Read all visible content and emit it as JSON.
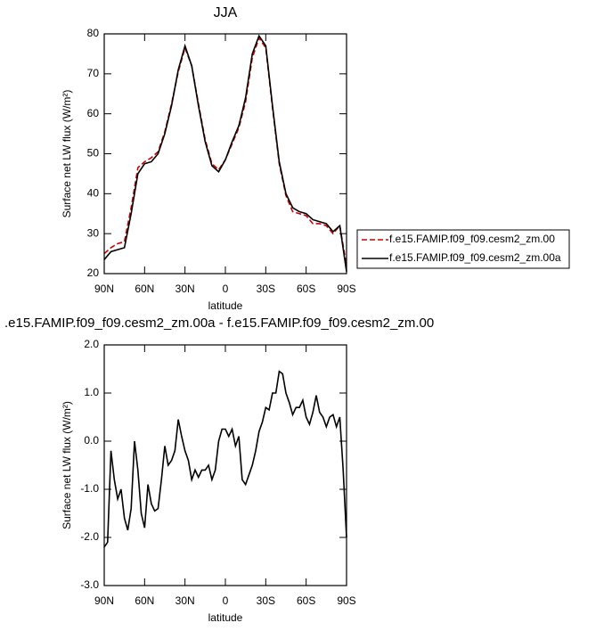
{
  "chart_data": [
    {
      "type": "line",
      "title": "JJA",
      "xlabel": "latitude",
      "ylabel": "Surface net LW flux (W/m²)",
      "x": [
        90,
        85,
        80,
        75,
        70,
        65,
        60,
        55,
        50,
        45,
        40,
        35,
        30,
        25,
        20,
        15,
        10,
        5,
        0,
        -5,
        -10,
        -15,
        -20,
        -25,
        -30,
        -35,
        -40,
        -45,
        -50,
        -55,
        -60,
        -65,
        -70,
        -75,
        -80,
        -85,
        -90
      ],
      "series": [
        {
          "name": "f.e15.FAMIP.f09_f09.cesm2_zm.00",
          "color": "#cc0000",
          "style": "dashed",
          "values": [
            25,
            26.5,
            27.5,
            28,
            36.5,
            46.5,
            48,
            49,
            50.5,
            55.5,
            62.5,
            70.5,
            76.5,
            72,
            62.5,
            53.5,
            47.5,
            46,
            48.5,
            52.5,
            56.5,
            63,
            74,
            79,
            76.5,
            61.5,
            47.5,
            39.5,
            35.5,
            35,
            34.5,
            32.5,
            32.5,
            32,
            30,
            32,
            22
          ]
        },
        {
          "name": "f.e15.FAMIP.f09_f09.cesm2_zm.00a",
          "color": "#000000",
          "style": "solid",
          "values": [
            23.5,
            25.5,
            26,
            26.5,
            35,
            45,
            47.5,
            48,
            50,
            55,
            62,
            71,
            77,
            72,
            62,
            53,
            47,
            45.5,
            48.5,
            53,
            57,
            64,
            75,
            79.5,
            77,
            62,
            48,
            40,
            36.5,
            35.5,
            35,
            33.5,
            33,
            32.5,
            30.5,
            32,
            20.5
          ]
        }
      ],
      "xlim": [
        90,
        -90
      ],
      "xticks": [
        {
          "value": 90,
          "label": "90N"
        },
        {
          "value": 60,
          "label": "60N"
        },
        {
          "value": 30,
          "label": "30N"
        },
        0,
        {
          "value": -30,
          "label": "30S"
        },
        {
          "value": -60,
          "label": "60S"
        },
        {
          "value": -90,
          "label": "90S"
        }
      ],
      "ylim": [
        20,
        80
      ],
      "yticks": [
        20,
        30,
        40,
        50,
        60,
        70,
        80
      ],
      "legend": "right"
    },
    {
      "type": "line",
      "title": ".e15.FAMIP.f09_f09.cesm2_zm.00a - f.e15.FAMIP.f09_f09.cesm2_zm.00",
      "xlabel": "latitude",
      "ylabel": "Surface net LW flux (W/m²)",
      "x": [
        90,
        87.5,
        85,
        82.5,
        80,
        77.5,
        75,
        72.5,
        70,
        67.5,
        65,
        62.5,
        60,
        57.5,
        55,
        52.5,
        50,
        47.5,
        45,
        42.5,
        40,
        37.5,
        35,
        32.5,
        30,
        27.5,
        25,
        22.5,
        20,
        17.5,
        15,
        12.5,
        10,
        7.5,
        5,
        2.5,
        0,
        -2.5,
        -5,
        -7.5,
        -10,
        -12.5,
        -15,
        -17.5,
        -20,
        -22.5,
        -25,
        -27.5,
        -30,
        -32.5,
        -35,
        -37.5,
        -40,
        -42.5,
        -45,
        -47.5,
        -50,
        -52.5,
        -55,
        -57.5,
        -60,
        -62.5,
        -65,
        -67.5,
        -70,
        -72.5,
        -75,
        -77.5,
        -80,
        -82.5,
        -85,
        -87.5,
        -90
      ],
      "series": [
        {
          "color": "#000000",
          "style": "solid",
          "values": [
            -2.2,
            -2.1,
            -0.2,
            -0.8,
            -1.2,
            -1.0,
            -1.6,
            -1.85,
            -1.4,
            0.0,
            -0.6,
            -1.5,
            -1.8,
            -0.9,
            -1.3,
            -1.45,
            -1.4,
            -0.8,
            -0.1,
            -0.5,
            -0.4,
            -0.2,
            0.45,
            0.1,
            -0.2,
            -0.4,
            -0.8,
            -0.6,
            -0.75,
            -0.6,
            -0.6,
            -0.5,
            -0.8,
            -0.6,
            0.0,
            0.25,
            0.25,
            0.1,
            0.25,
            -0.1,
            0.1,
            -0.8,
            -0.9,
            -0.7,
            -0.5,
            -0.2,
            0.2,
            0.4,
            0.7,
            0.65,
            1.0,
            1.0,
            1.45,
            1.4,
            1.0,
            0.8,
            0.55,
            0.7,
            0.7,
            0.85,
            0.5,
            0.35,
            0.6,
            0.95,
            0.6,
            0.5,
            0.3,
            0.5,
            0.55,
            0.3,
            0.5,
            -0.6,
            -2.0
          ]
        }
      ],
      "xlim": [
        90,
        -90
      ],
      "xticks": [
        {
          "value": 90,
          "label": "90N"
        },
        {
          "value": 60,
          "label": "60N"
        },
        {
          "value": 30,
          "label": "30N"
        },
        0,
        {
          "value": -30,
          "label": "30S"
        },
        {
          "value": -60,
          "label": "60S"
        },
        {
          "value": -90,
          "label": "90S"
        }
      ],
      "ylim": [
        -3,
        2
      ],
      "yticks": [
        {
          "value": -3,
          "label": "-3.0"
        },
        {
          "value": -2,
          "label": "-2.0"
        },
        {
          "value": -1,
          "label": "-1.0"
        },
        {
          "value": 0,
          "label": "0.0"
        },
        {
          "value": 1,
          "label": "1.0"
        },
        {
          "value": 2,
          "label": "2.0"
        }
      ]
    }
  ]
}
